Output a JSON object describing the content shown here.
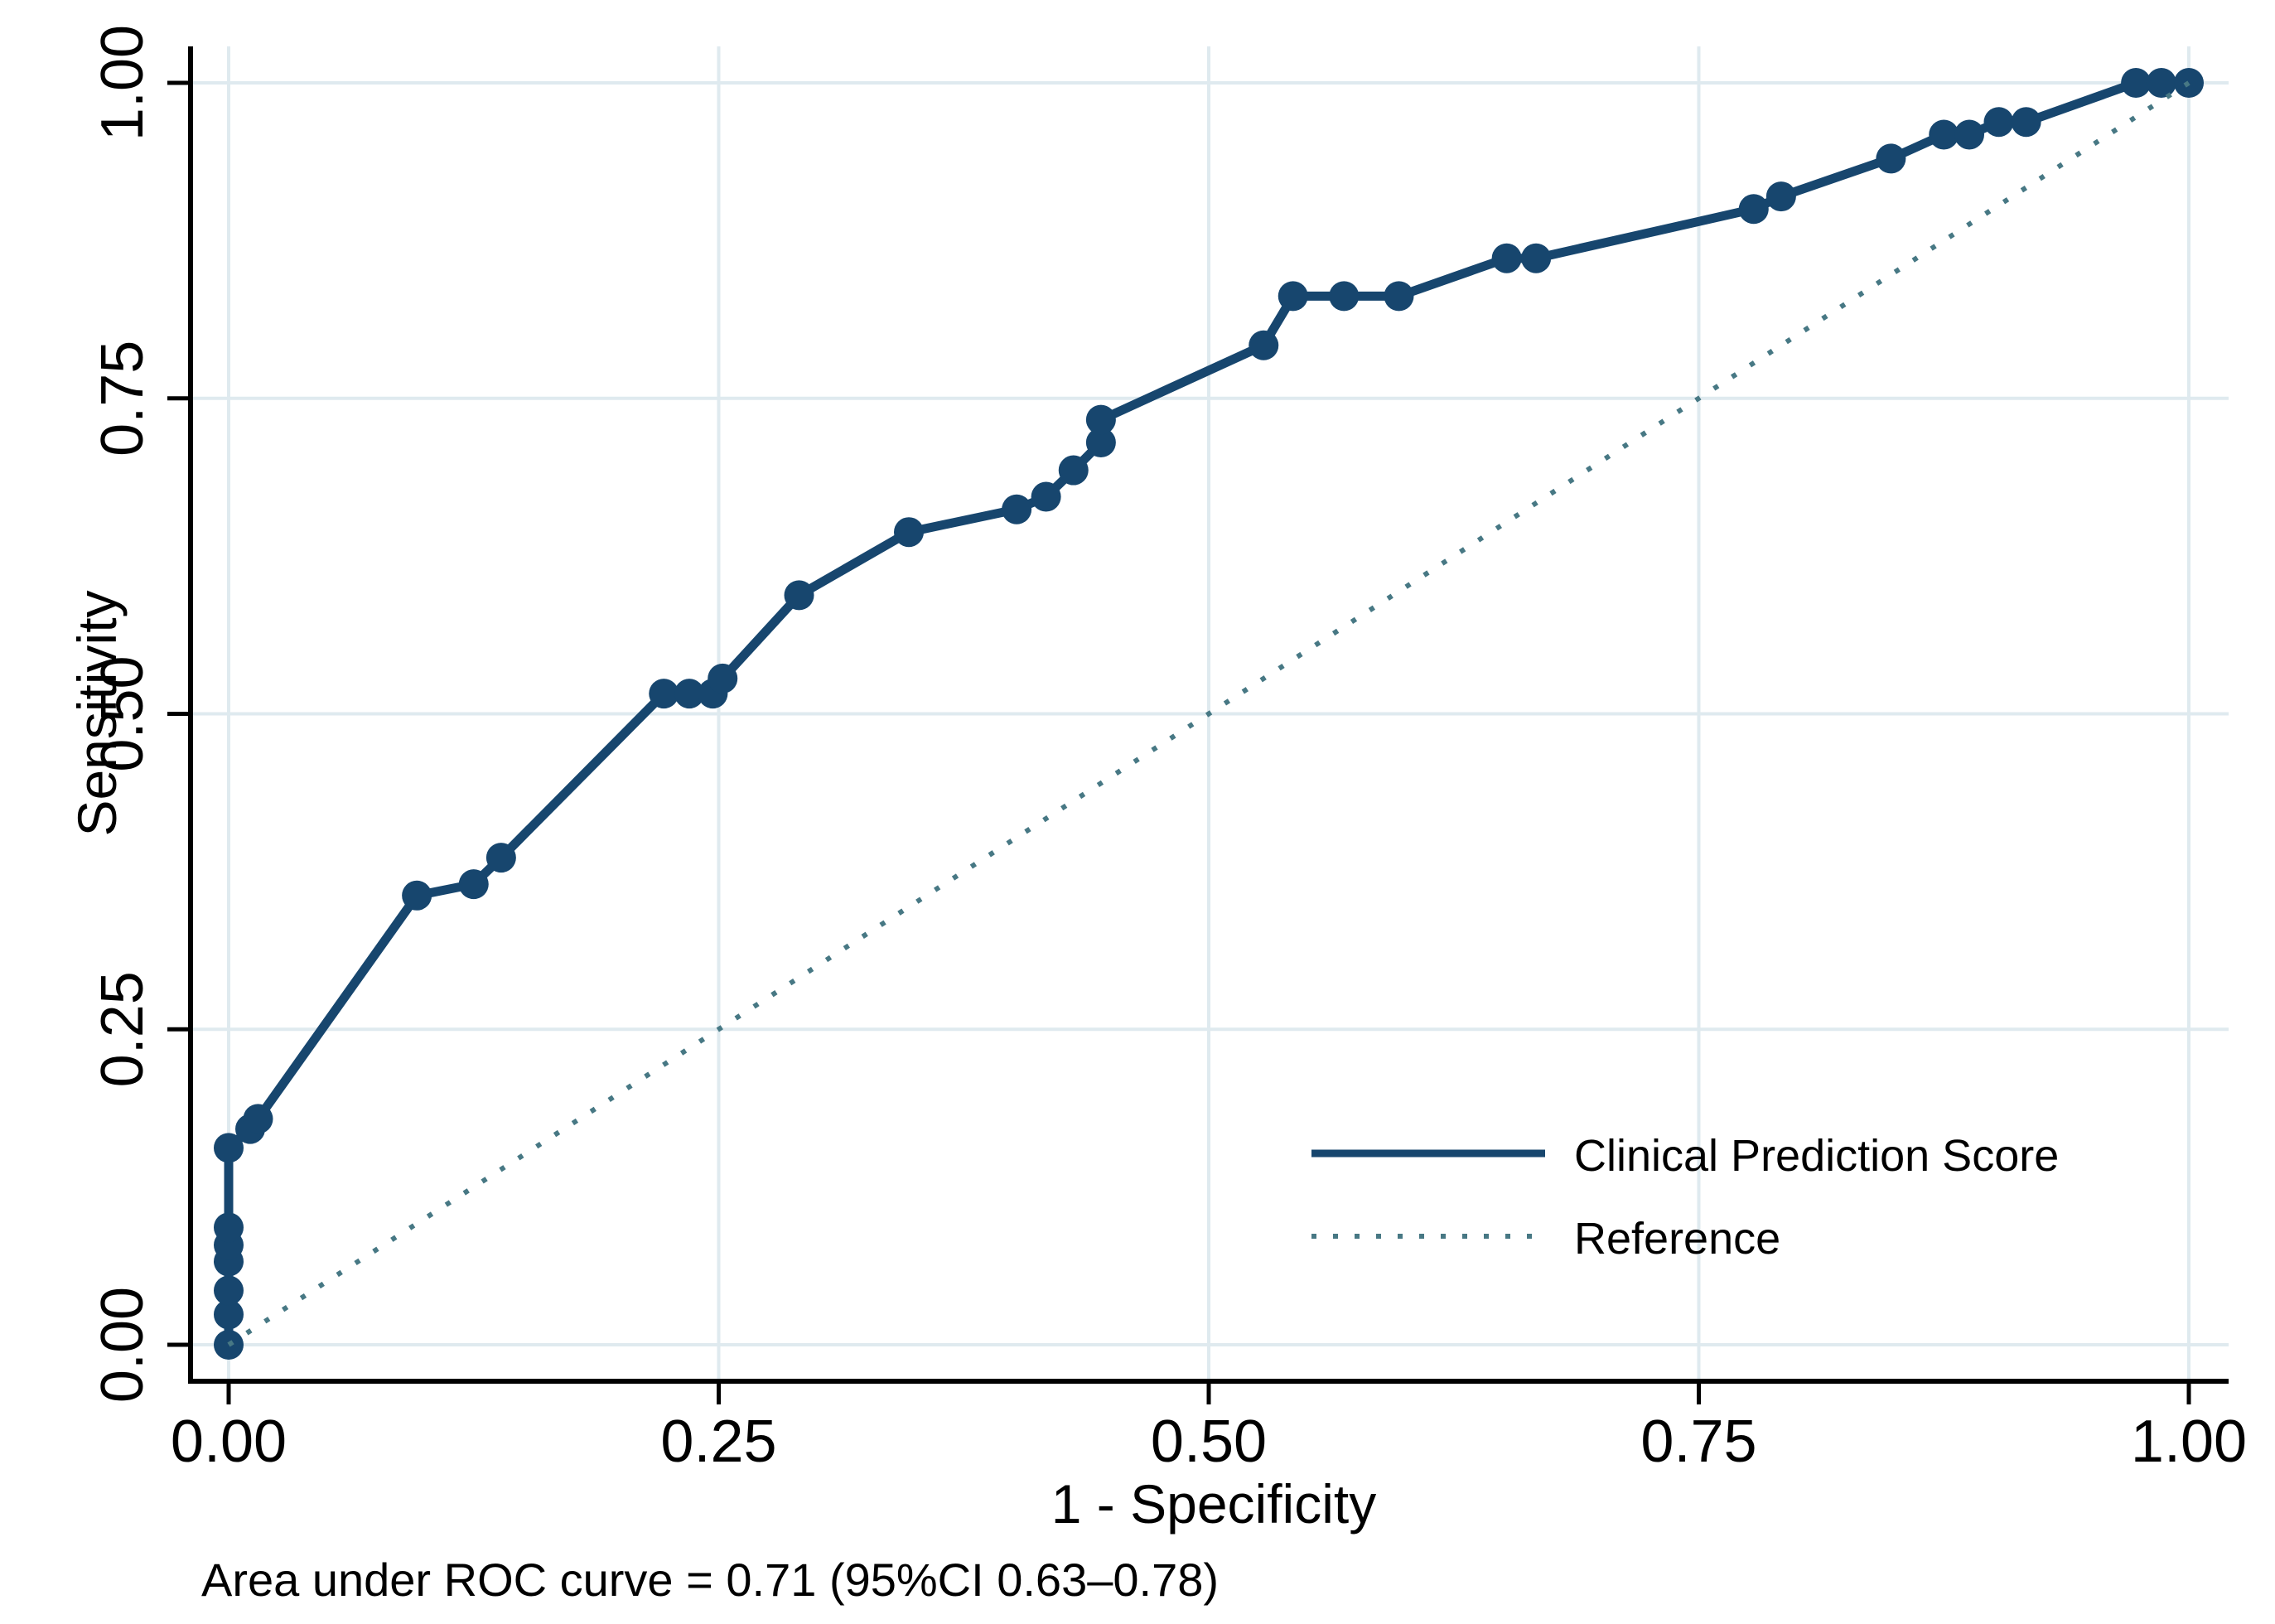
{
  "figure": {
    "background_color": "#ffffff"
  },
  "chart_data": {
    "type": "line",
    "title": "",
    "xlabel": "1 - Specificity",
    "ylabel": "Sensitivity",
    "xlim": [
      0,
      1
    ],
    "ylim": [
      0,
      1
    ],
    "grid": true,
    "gridline_color": "#dfeaef",
    "axis_color": "#000000",
    "x_ticks": {
      "values": [
        0,
        0.25,
        0.5,
        0.75,
        1
      ],
      "labels": [
        "0.00",
        "0.25",
        "0.50",
        "0.75",
        "1.00"
      ]
    },
    "y_ticks": {
      "values": [
        0,
        0.25,
        0.5,
        0.75,
        1
      ],
      "labels": [
        "0.00",
        "0.25",
        "0.50",
        "0.75",
        "1.00"
      ]
    },
    "series": [
      {
        "name": "Clinical Prediction Score",
        "style": "solid",
        "markers": true,
        "color": "#17466e",
        "points": [
          [
            0.0,
            0.0
          ],
          [
            0.0,
            0.024
          ],
          [
            0.0,
            0.043
          ],
          [
            0.0,
            0.066
          ],
          [
            0.0,
            0.079
          ],
          [
            0.0,
            0.093
          ],
          [
            0.0,
            0.156
          ],
          [
            0.011,
            0.171
          ],
          [
            0.015,
            0.179
          ],
          [
            0.096,
            0.356
          ],
          [
            0.125,
            0.365
          ],
          [
            0.139,
            0.386
          ],
          [
            0.222,
            0.516
          ],
          [
            0.235,
            0.516
          ],
          [
            0.247,
            0.516
          ],
          [
            0.252,
            0.528
          ],
          [
            0.291,
            0.594
          ],
          [
            0.347,
            0.644
          ],
          [
            0.402,
            0.662
          ],
          [
            0.417,
            0.672
          ],
          [
            0.431,
            0.693
          ],
          [
            0.445,
            0.715
          ],
          [
            0.445,
            0.733
          ],
          [
            0.528,
            0.792
          ],
          [
            0.543,
            0.831
          ],
          [
            0.569,
            0.831
          ],
          [
            0.597,
            0.831
          ],
          [
            0.652,
            0.861
          ],
          [
            0.667,
            0.861
          ],
          [
            0.778,
            0.9
          ],
          [
            0.792,
            0.91
          ],
          [
            0.848,
            0.94
          ],
          [
            0.875,
            0.959
          ],
          [
            0.888,
            0.959
          ],
          [
            0.903,
            0.969
          ],
          [
            0.917,
            0.969
          ],
          [
            0.973,
            1.0
          ],
          [
            0.986,
            1.0
          ],
          [
            1.0,
            1.0
          ]
        ]
      },
      {
        "name": "Reference",
        "style": "dotted",
        "markers": false,
        "color": "#477884",
        "points": [
          [
            0,
            0
          ],
          [
            1,
            1
          ]
        ]
      }
    ],
    "legend": {
      "position": "inside-right",
      "entries": [
        {
          "label": "Clinical Prediction Score",
          "line_style": "solid",
          "color": "#17466e"
        },
        {
          "label": "Reference",
          "line_style": "dotted",
          "color": "#477884"
        }
      ]
    },
    "annotation": "Area under ROC curve = 0.71 (95%CI 0.63–0.78)",
    "auc": {
      "estimate": 0.71,
      "ci_level": "95%",
      "ci_lower": 0.63,
      "ci_upper": 0.78
    }
  }
}
